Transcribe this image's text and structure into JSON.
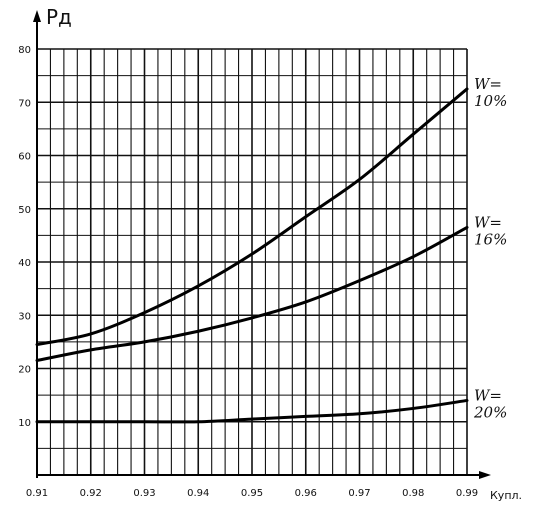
{
  "chart_data": {
    "type": "line",
    "ylabel": "Рд",
    "xlabel": "Купл.",
    "xlim": [
      0.91,
      0.99
    ],
    "ylim": [
      0,
      80
    ],
    "grid": true,
    "x_ticks": [
      "0.91",
      "0.92",
      "0.93",
      "0.94",
      "0.95",
      "0.96",
      "0.97",
      "0.98",
      "0.99"
    ],
    "y_ticks": [
      "10",
      "20",
      "30",
      "40",
      "50",
      "60",
      "70",
      "80"
    ],
    "series": [
      {
        "name": "W= 10%",
        "label_lines": [
          "W=",
          "10%"
        ],
        "x": [
          0.91,
          0.92,
          0.93,
          0.94,
          0.95,
          0.96,
          0.97,
          0.98,
          0.99
        ],
        "values": [
          24.5,
          26.5,
          30.5,
          35.5,
          41.5,
          48.5,
          55.5,
          64,
          72.5
        ]
      },
      {
        "name": "W= 16%",
        "label_lines": [
          "W=",
          "16%"
        ],
        "x": [
          0.91,
          0.92,
          0.93,
          0.94,
          0.95,
          0.96,
          0.97,
          0.98,
          0.99
        ],
        "values": [
          21.5,
          23.5,
          25,
          27,
          29.5,
          32.5,
          36.5,
          41,
          46.5
        ]
      },
      {
        "name": "W= 20%",
        "label_lines": [
          "W=",
          "20%"
        ],
        "x": [
          0.91,
          0.92,
          0.93,
          0.94,
          0.95,
          0.96,
          0.97,
          0.98,
          0.99
        ],
        "values": [
          10,
          10,
          10,
          10,
          10.5,
          11,
          11.5,
          12.5,
          14
        ]
      }
    ]
  }
}
